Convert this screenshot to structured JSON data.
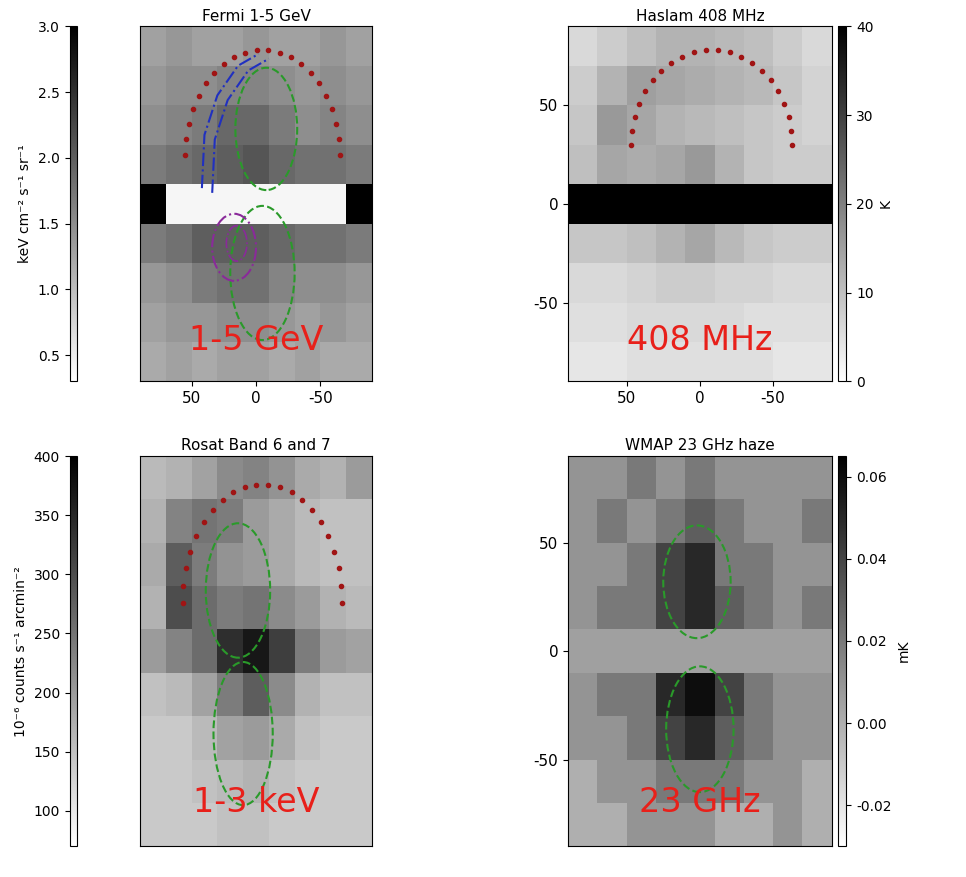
{
  "chart_data": [
    {
      "type": "heatmap",
      "title": "Fermi 1-5 GeV",
      "annotation": "1-5 GeV",
      "xlim": [
        90,
        -90
      ],
      "ylim": [
        -90,
        90
      ],
      "xticks": [
        50,
        0,
        -50
      ],
      "tick_labels": "x",
      "cell_x": [
        80,
        60,
        40,
        20,
        0,
        -20,
        -40,
        -60,
        -80
      ],
      "cell_y": [
        80,
        60,
        40,
        20,
        0,
        -20,
        -40,
        -60,
        -80
      ],
      "cells": [
        [
          1.3,
          1.4,
          1.3,
          1.3,
          1.4,
          1.3,
          1.3,
          1.4,
          1.3
        ],
        [
          1.4,
          1.5,
          1.5,
          1.6,
          1.6,
          1.5,
          1.4,
          1.5,
          1.4
        ],
        [
          1.5,
          1.6,
          1.7,
          1.9,
          1.9,
          1.7,
          1.5,
          1.6,
          1.5
        ],
        [
          1.7,
          1.8,
          1.9,
          2.0,
          2.1,
          1.9,
          1.8,
          1.8,
          1.7
        ],
        [
          3.0,
          0.4,
          0.4,
          0.4,
          0.4,
          0.4,
          0.4,
          0.4,
          3.0
        ],
        [
          1.7,
          1.8,
          2.0,
          2.0,
          2.0,
          1.9,
          1.8,
          1.8,
          1.7
        ],
        [
          1.4,
          1.5,
          1.7,
          1.8,
          1.8,
          1.6,
          1.5,
          1.5,
          1.4
        ],
        [
          1.3,
          1.4,
          1.4,
          1.5,
          1.5,
          1.4,
          1.3,
          1.4,
          1.3
        ],
        [
          1.2,
          1.3,
          1.2,
          1.3,
          1.3,
          1.2,
          1.3,
          1.2,
          1.2
        ]
      ],
      "colorbar_range": [
        0.3,
        3.0
      ],
      "colorbar_ticks": [
        0.5,
        1.0,
        1.5,
        2.0,
        2.5,
        3.0
      ],
      "colorbar_label": "keV cm⁻² s⁻¹ sr⁻¹"
    },
    {
      "type": "heatmap",
      "title": "Haslam 408 MHz",
      "annotation": "408 MHz",
      "xlim": [
        90,
        -90
      ],
      "ylim": [
        -90,
        90
      ],
      "xticks": [
        50,
        0,
        -50
      ],
      "yticks": [
        -50,
        0,
        50
      ],
      "tick_labels": true,
      "cell_x": [
        80,
        60,
        40,
        20,
        0,
        -20,
        -40,
        -60,
        -80
      ],
      "cell_y": [
        80,
        60,
        40,
        20,
        0,
        -20,
        -40,
        -60,
        -80
      ],
      "cells": [
        [
          6,
          8,
          10,
          12,
          12,
          11,
          10,
          8,
          6
        ],
        [
          8,
          12,
          15,
          14,
          13,
          12,
          11,
          9,
          7
        ],
        [
          9,
          16,
          14,
          12,
          11,
          10,
          9,
          8,
          7
        ],
        [
          10,
          14,
          13,
          14,
          16,
          12,
          9,
          8,
          8
        ],
        [
          40,
          40,
          40,
          40,
          40,
          40,
          40,
          40,
          40
        ],
        [
          9,
          9,
          10,
          12,
          14,
          11,
          9,
          8,
          8
        ],
        [
          6,
          6,
          7,
          8,
          8,
          7,
          7,
          6,
          6
        ],
        [
          5,
          5,
          6,
          6,
          6,
          6,
          5,
          5,
          5
        ],
        [
          4,
          4,
          5,
          5,
          5,
          5,
          5,
          4,
          4
        ]
      ],
      "colorbar_range": [
        0,
        40
      ],
      "colorbar_ticks": [
        0,
        10,
        20,
        30,
        40
      ],
      "colorbar_label": "K"
    },
    {
      "type": "heatmap",
      "title": "Rosat Band 6 and 7",
      "annotation": "1-3 keV",
      "xlim": [
        90,
        -90
      ],
      "ylim": [
        -90,
        90
      ],
      "tick_labels": false,
      "cell_x": [
        80,
        60,
        40,
        20,
        0,
        -20,
        -40,
        -60,
        -80
      ],
      "cell_y": [
        80,
        60,
        40,
        20,
        0,
        -20,
        -40,
        -60,
        -80
      ],
      "cells": [
        [
          160,
          170,
          190,
          220,
          230,
          210,
          180,
          170,
          200
        ],
        [
          170,
          230,
          250,
          240,
          200,
          180,
          160,
          150,
          150
        ],
        [
          180,
          280,
          240,
          210,
          200,
          180,
          160,
          150,
          150
        ],
        [
          170,
          300,
          260,
          240,
          250,
          220,
          200,
          170,
          160
        ],
        [
          200,
          230,
          260,
          340,
          370,
          320,
          240,
          200,
          190
        ],
        [
          150,
          160,
          190,
          240,
          280,
          220,
          170,
          150,
          150
        ],
        [
          140,
          140,
          160,
          190,
          200,
          180,
          150,
          140,
          140
        ],
        [
          140,
          140,
          150,
          160,
          170,
          150,
          140,
          140,
          140
        ],
        [
          140,
          140,
          140,
          150,
          150,
          140,
          140,
          140,
          140
        ]
      ],
      "colorbar_range": [
        70,
        400
      ],
      "colorbar_ticks": [
        100,
        150,
        200,
        250,
        300,
        350,
        400
      ],
      "colorbar_label": "10⁻⁶ counts s⁻¹ arcmin⁻²"
    },
    {
      "type": "heatmap",
      "title": "WMAP 23 GHz haze",
      "annotation": "23 GHz",
      "xlim": [
        90,
        -90
      ],
      "ylim": [
        -90,
        90
      ],
      "yticks": [
        -50,
        0,
        50
      ],
      "tick_labels": "y",
      "cell_x": [
        80,
        60,
        40,
        20,
        0,
        -20,
        -40,
        -60,
        -80
      ],
      "cell_y": [
        80,
        60,
        40,
        20,
        0,
        -20,
        -40,
        -60,
        -80
      ],
      "cells": [
        [
          0.01,
          0.01,
          0.02,
          0.01,
          0.02,
          0.01,
          0.01,
          0.01,
          0.01
        ],
        [
          0.01,
          0.02,
          0.01,
          0.02,
          0.03,
          0.02,
          0.01,
          0.01,
          0.02
        ],
        [
          0.01,
          0.01,
          0.02,
          0.04,
          0.05,
          0.02,
          0.02,
          0.01,
          0.01
        ],
        [
          0.01,
          0.02,
          0.02,
          0.04,
          0.05,
          0.03,
          0.02,
          0.01,
          0.02
        ],
        [
          null,
          null,
          null,
          null,
          null,
          null,
          null,
          null,
          null
        ],
        [
          0.01,
          0.02,
          0.02,
          0.05,
          0.06,
          0.04,
          0.02,
          0.01,
          0.01
        ],
        [
          0.01,
          0.01,
          0.02,
          0.04,
          0.05,
          0.03,
          0.02,
          0.01,
          0.01
        ],
        [
          0.0,
          0.01,
          0.01,
          0.02,
          0.02,
          0.02,
          0.01,
          0.01,
          0.0
        ],
        [
          0.0,
          0.0,
          0.01,
          0.01,
          0.01,
          0.0,
          0.0,
          0.01,
          0.0
        ]
      ],
      "colorbar_range": [
        -0.03,
        0.065
      ],
      "colorbar_ticks": [
        -0.02,
        {
          "value": 0.0,
          "label": "0.00"
        },
        0.02,
        0.04,
        0.06
      ],
      "colorbar_label": "mK"
    }
  ]
}
